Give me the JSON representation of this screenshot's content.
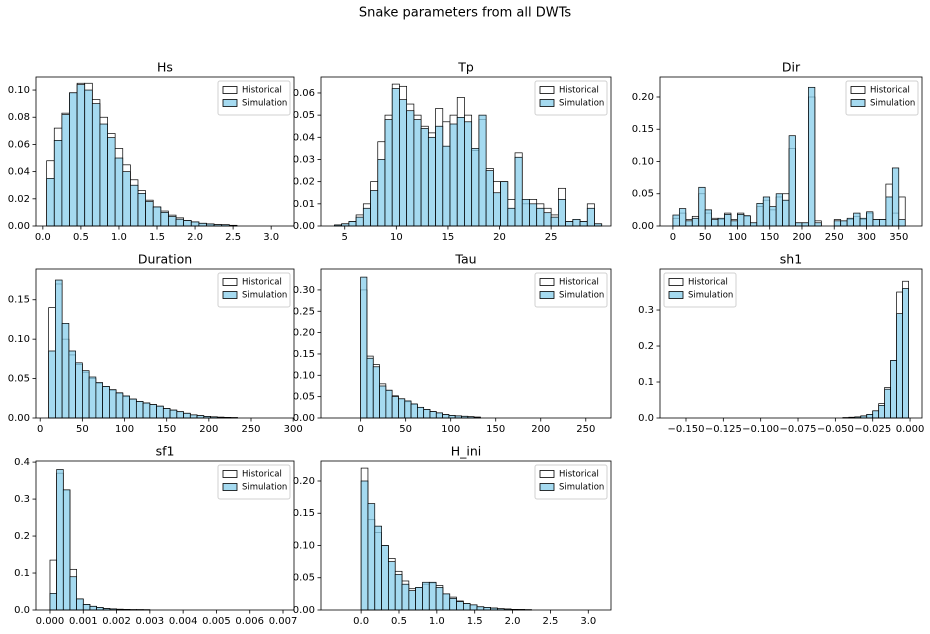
{
  "title": "Snake parameters from all DWTs",
  "chart_data": [
    {
      "type": "histogram",
      "title": "Hs",
      "legend": "upper right",
      "bins": [
        0.05,
        0.15,
        0.25,
        0.35,
        0.45,
        0.55,
        0.65,
        0.75,
        0.85,
        0.95,
        1.05,
        1.15,
        1.25,
        1.35,
        1.45,
        1.55,
        1.65,
        1.75,
        1.85,
        1.95,
        2.05,
        2.15,
        2.25,
        2.35,
        2.45,
        2.55
      ],
      "series": [
        {
          "name": "Historical",
          "color": "#ffffff",
          "edgecolor": "#000000",
          "values": [
            0.048,
            0.072,
            0.083,
            0.098,
            0.105,
            0.105,
            0.093,
            0.08,
            0.068,
            0.057,
            0.045,
            0.034,
            0.026,
            0.019,
            0.014,
            0.011,
            0.008,
            0.006,
            0.004,
            0.003,
            0.002,
            0.0015,
            0.001,
            0.0008,
            0.0005
          ]
        },
        {
          "name": "Simulation",
          "color": "#87ceeb",
          "edgecolor": "#000000",
          "values": [
            0.035,
            0.063,
            0.082,
            0.098,
            0.104,
            0.1,
            0.09,
            0.075,
            0.065,
            0.05,
            0.04,
            0.03,
            0.024,
            0.018,
            0.014,
            0.01,
            0.007,
            0.005,
            0.004,
            0.003,
            0.002,
            0.0015,
            0.001,
            0.001,
            0.0005
          ]
        }
      ],
      "xlim": [
        -0.09,
        3.3
      ],
      "xticks": [
        {
          "value": 0,
          "label": "0.0"
        },
        0.5,
        {
          "value": 1,
          "label": "1.0"
        },
        1.5,
        {
          "value": 2,
          "label": "2.0"
        },
        2.5,
        {
          "value": 3,
          "label": "3.0"
        }
      ],
      "ylim": [
        0,
        0.1096
      ],
      "yticks": [
        {
          "value": 0,
          "label": "0.00"
        },
        0.02,
        0.04,
        0.06,
        0.08,
        {
          "value": 0.1,
          "label": "0.10"
        }
      ]
    },
    {
      "type": "histogram",
      "title": "Tp",
      "legend": "upper right",
      "bins": [
        4.0,
        4.7,
        5.4,
        6.1,
        6.8,
        7.5,
        8.2,
        8.9,
        9.6,
        10.3,
        11.0,
        11.7,
        12.4,
        13.1,
        13.8,
        14.5,
        15.2,
        15.9,
        16.6,
        17.3,
        18.0,
        18.7,
        19.4,
        20.1,
        20.8,
        21.5,
        22.2,
        22.9,
        23.6,
        24.3,
        25.0,
        25.7,
        26.4,
        27.1,
        27.8,
        28.5,
        29.2,
        29.9
      ],
      "series": [
        {
          "name": "Historical",
          "color": "#ffffff",
          "edgecolor": "#000000",
          "values": [
            0.0003,
            0.001,
            0.002,
            0.005,
            0.01,
            0.02,
            0.038,
            0.05,
            0.064,
            0.063,
            0.055,
            0.05,
            0.045,
            0.042,
            0.053,
            0.047,
            0.05,
            0.058,
            0.05,
            0.034,
            0.048,
            0.026,
            0.02,
            0.02,
            0.012,
            0.033,
            0.01,
            0.012,
            0.01,
            0.008,
            0.005,
            0.017,
            0.002,
            0.003,
            0.002,
            0.01,
            0.001
          ]
        },
        {
          "name": "Simulation",
          "color": "#87ceeb",
          "edgecolor": "#000000",
          "values": [
            0.0005,
            0.001,
            0.002,
            0.004,
            0.008,
            0.016,
            0.03,
            0.048,
            0.062,
            0.057,
            0.052,
            0.048,
            0.044,
            0.04,
            0.045,
            0.036,
            0.046,
            0.049,
            0.047,
            0.035,
            0.05,
            0.025,
            0.015,
            0.02,
            0.008,
            0.031,
            0.012,
            0.01,
            0.008,
            0.006,
            0.004,
            0.012,
            0.002,
            0.003,
            0.002,
            0.008,
            0.001
          ]
        }
      ],
      "xlim": [
        2.7,
        30.8
      ],
      "xticks": [
        5,
        10,
        15,
        20,
        25
      ],
      "ylim": [
        0,
        0.0672
      ],
      "yticks": [
        {
          "value": 0,
          "label": "0.00"
        },
        0.01,
        0.02,
        0.03,
        0.04,
        0.05,
        0.06
      ]
    },
    {
      "type": "histogram",
      "title": "Dir",
      "legend": "upper right",
      "bins": [
        0,
        10,
        20,
        30,
        40,
        50,
        60,
        70,
        80,
        90,
        100,
        110,
        120,
        130,
        140,
        150,
        160,
        170,
        180,
        190,
        200,
        210,
        220,
        230,
        240,
        250,
        260,
        270,
        280,
        290,
        300,
        310,
        320,
        330,
        340,
        350,
        360
      ],
      "series": [
        {
          "name": "Historical",
          "color": "#ffffff",
          "edgecolor": "#000000",
          "values": [
            0.012,
            0.02,
            0.01,
            0.015,
            0.05,
            0.02,
            0.012,
            0.01,
            0.02,
            0.01,
            0.02,
            0.015,
            0.005,
            0.03,
            0.04,
            0.025,
            0.045,
            0.05,
            0.12,
            0.005,
            0.005,
            0.2,
            0.008,
            0,
            0,
            0.01,
            0.008,
            0.01,
            0.015,
            0.01,
            0.02,
            0.01,
            0.01,
            0.065,
            0.02,
            0.045
          ]
        },
        {
          "name": "Simulation",
          "color": "#87ceeb",
          "edgecolor": "#000000",
          "values": [
            0.017,
            0.027,
            0.008,
            0.012,
            0.06,
            0.025,
            0.01,
            0.012,
            0.018,
            0.008,
            0.018,
            0.016,
            0.005,
            0.035,
            0.045,
            0.03,
            0.05,
            0.04,
            0.14,
            0.005,
            0.005,
            0.215,
            0.005,
            0,
            0,
            0.008,
            0.008,
            0.012,
            0.02,
            0.012,
            0.022,
            0.01,
            0.01,
            0.045,
            0.09,
            0.01
          ]
        }
      ],
      "xlim": [
        -20,
        386
      ],
      "xticks": [
        0,
        50,
        100,
        150,
        200,
        250,
        300,
        350
      ],
      "ylim": [
        0,
        0.231
      ],
      "yticks": [
        {
          "value": 0,
          "label": "0.00"
        },
        0.05,
        {
          "value": 0.1,
          "label": "0.10"
        },
        0.15,
        {
          "value": 0.2,
          "label": "0.20"
        }
      ]
    },
    {
      "type": "histogram",
      "title": "Duration",
      "legend": "upper right",
      "bins": [
        10,
        18,
        26,
        34,
        42,
        50,
        58,
        66,
        74,
        82,
        90,
        98,
        106,
        114,
        122,
        130,
        138,
        146,
        154,
        162,
        170,
        178,
        186,
        194,
        202,
        210,
        218,
        226,
        234
      ],
      "series": [
        {
          "name": "Historical",
          "color": "#ffffff",
          "edgecolor": "#000000",
          "values": [
            0.14,
            0.17,
            0.1,
            0.08,
            0.068,
            0.058,
            0.05,
            0.044,
            0.04,
            0.035,
            0.031,
            0.027,
            0.024,
            0.021,
            0.019,
            0.017,
            0.015,
            0.012,
            0.01,
            0.008,
            0.006,
            0.004,
            0.003,
            0.002,
            0.0015,
            0.001,
            0.0008,
            0.0005
          ]
        },
        {
          "name": "Simulation",
          "color": "#87ceeb",
          "edgecolor": "#000000",
          "values": [
            0.085,
            0.175,
            0.12,
            0.085,
            0.07,
            0.06,
            0.052,
            0.045,
            0.04,
            0.036,
            0.032,
            0.028,
            0.024,
            0.021,
            0.019,
            0.017,
            0.015,
            0.012,
            0.01,
            0.008,
            0.006,
            0.004,
            0.003,
            0.002,
            0.0015,
            0.001,
            0.0008,
            0.0005
          ]
        }
      ],
      "xlim": [
        -5,
        301
      ],
      "xticks": [
        0,
        50,
        100,
        150,
        200,
        250,
        300
      ],
      "ylim": [
        0,
        0.189
      ],
      "yticks": [
        {
          "value": 0,
          "label": "0.00"
        },
        0.05,
        {
          "value": 0.1,
          "label": "0.10"
        },
        0.15
      ]
    },
    {
      "type": "histogram",
      "title": "Tau",
      "legend": "upper right",
      "bins": [
        0,
        7,
        14,
        21,
        28,
        35,
        42,
        49,
        56,
        63,
        70,
        77,
        84,
        91,
        98,
        105,
        112,
        119,
        126,
        133
      ],
      "series": [
        {
          "name": "Historical",
          "color": "#ffffff",
          "edgecolor": "#000000",
          "values": [
            0.3,
            0.145,
            0.125,
            0.08,
            0.065,
            0.052,
            0.045,
            0.038,
            0.032,
            0.025,
            0.02,
            0.015,
            0.012,
            0.008,
            0.006,
            0.005,
            0.004,
            0.003,
            0.002
          ]
        },
        {
          "name": "Simulation",
          "color": "#87ceeb",
          "edgecolor": "#000000",
          "values": [
            0.33,
            0.14,
            0.12,
            0.075,
            0.065,
            0.05,
            0.045,
            0.04,
            0.033,
            0.025,
            0.02,
            0.015,
            0.012,
            0.008,
            0.006,
            0.005,
            0.004,
            0.003,
            0.002
          ]
        }
      ],
      "xlim": [
        -44,
        278
      ],
      "xticks": [
        0,
        50,
        100,
        150,
        200,
        250
      ],
      "ylim": [
        0,
        0.349
      ],
      "yticks": [
        {
          "value": 0,
          "label": "0.00"
        },
        0.05,
        {
          "value": 0.1,
          "label": "0.10"
        },
        0.15,
        {
          "value": 0.2,
          "label": "0.20"
        },
        0.25,
        {
          "value": 0.3,
          "label": "0.30"
        }
      ]
    },
    {
      "type": "histogram",
      "title": "sh1",
      "legend": "upper left",
      "bins": [
        -0.045,
        -0.041,
        -0.037,
        -0.033,
        -0.029,
        -0.025,
        -0.021,
        -0.017,
        -0.013,
        -0.009,
        -0.005,
        -0.001
      ],
      "series": [
        {
          "name": "Historical",
          "color": "#ffffff",
          "edgecolor": "#000000",
          "values": [
            0.001,
            0.002,
            0.003,
            0.005,
            0.01,
            0.02,
            0.04,
            0.085,
            0.16,
            0.35,
            0.38
          ]
        },
        {
          "name": "Simulation",
          "color": "#87ceeb",
          "edgecolor": "#000000",
          "values": [
            0.001,
            0.002,
            0.003,
            0.006,
            0.01,
            0.02,
            0.035,
            0.08,
            0.16,
            0.29,
            0.36
          ]
        }
      ],
      "xlim": [
        -0.1674,
        0.008
      ],
      "xticks": [
        {
          "value": -0.15,
          "label": "−0.150"
        },
        {
          "value": -0.125,
          "label": "−0.125"
        },
        {
          "value": -0.1,
          "label": "−0.100"
        },
        {
          "value": -0.075,
          "label": "−0.075"
        },
        {
          "value": -0.05,
          "label": "−0.050"
        },
        {
          "value": -0.025,
          "label": "−0.025"
        },
        {
          "value": 0,
          "label": "0.000"
        }
      ],
      "ylim": [
        0,
        0.414
      ],
      "yticks": [
        {
          "value": 0,
          "label": "0.0"
        },
        0.1,
        0.2,
        0.3
      ]
    },
    {
      "type": "histogram",
      "title": "sf1",
      "legend": "upper right",
      "bins": [
        0,
        0.0002,
        0.0004,
        0.0006,
        0.0008,
        0.001,
        0.0012,
        0.0014,
        0.0016,
        0.0018,
        0.002,
        0.0022,
        0.0024,
        0.0026,
        0.0028,
        0.003
      ],
      "series": [
        {
          "name": "Historical",
          "color": "#ffffff",
          "edgecolor": "#000000",
          "values": [
            0.135,
            0.37,
            0.325,
            0.11,
            0.03,
            0.015,
            0.01,
            0.007,
            0.004,
            0.003,
            0.002,
            0.0015,
            0.001,
            0.001,
            0.0008
          ]
        },
        {
          "name": "Simulation",
          "color": "#87ceeb",
          "edgecolor": "#000000",
          "values": [
            0.045,
            0.38,
            0.325,
            0.09,
            0.03,
            0.015,
            0.01,
            0.007,
            0.004,
            0.003,
            0.002,
            0.0015,
            0.001,
            0.001,
            0.0008
          ]
        }
      ],
      "xlim": [
        -0.00042,
        0.00733
      ],
      "xticks": [
        {
          "value": 0,
          "label": "0.000"
        },
        0.001,
        0.002,
        0.003,
        0.004,
        0.005,
        0.006,
        0.007
      ],
      "ylim": [
        0,
        0.403
      ],
      "yticks": [
        {
          "value": 0,
          "label": "0.0"
        },
        0.1,
        0.2,
        0.3,
        0.4
      ]
    },
    {
      "type": "histogram",
      "title": "H_ini",
      "legend": "upper right",
      "bins": [
        0,
        0.09,
        0.18,
        0.27,
        0.36,
        0.45,
        0.54,
        0.63,
        0.72,
        0.81,
        0.9,
        0.99,
        1.08,
        1.17,
        1.26,
        1.35,
        1.44,
        1.53,
        1.62,
        1.71,
        1.8,
        1.89,
        1.98,
        2.07,
        2.16,
        2.25
      ],
      "series": [
        {
          "name": "Historical",
          "color": "#ffffff",
          "edgecolor": "#000000",
          "values": [
            0.22,
            0.14,
            0.12,
            0.1,
            0.08,
            0.06,
            0.045,
            0.033,
            0.035,
            0.04,
            0.042,
            0.038,
            0.025,
            0.02,
            0.014,
            0.01,
            0.008,
            0.005,
            0.004,
            0.003,
            0.002,
            0.0015,
            0.001,
            0.0008,
            0.0005
          ]
        },
        {
          "name": "Simulation",
          "color": "#87ceeb",
          "edgecolor": "#000000",
          "values": [
            0.2,
            0.165,
            0.13,
            0.1,
            0.075,
            0.055,
            0.04,
            0.03,
            0.035,
            0.043,
            0.043,
            0.035,
            0.025,
            0.018,
            0.013,
            0.01,
            0.008,
            0.005,
            0.004,
            0.003,
            0.002,
            0.0015,
            0.001,
            0.0008,
            0.0005
          ]
        }
      ],
      "xlim": [
        -0.53,
        3.3
      ],
      "xticks": [
        {
          "value": 0,
          "label": "0.0"
        },
        0.5,
        {
          "value": 1,
          "label": "1.0"
        },
        1.5,
        {
          "value": 2,
          "label": "2.0"
        },
        2.5,
        {
          "value": 3,
          "label": "3.0"
        }
      ],
      "ylim": [
        0,
        0.231
      ],
      "yticks": [
        {
          "value": 0,
          "label": "0.00"
        },
        0.05,
        {
          "value": 0.1,
          "label": "0.10"
        },
        0.15,
        {
          "value": 0.2,
          "label": "0.20"
        }
      ]
    }
  ]
}
